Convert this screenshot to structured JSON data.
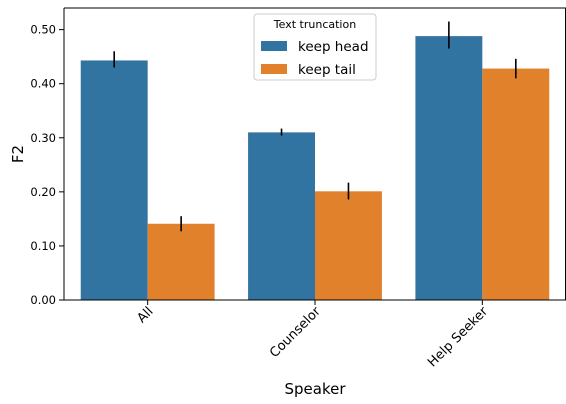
{
  "chart_data": {
    "type": "bar",
    "title": "",
    "xlabel": "Speaker",
    "ylabel": "F2",
    "categories": [
      "All",
      "Counselor",
      "Help Seeker"
    ],
    "ylim": [
      0,
      0.54
    ],
    "yticks": [
      0.0,
      0.1,
      0.2,
      0.3,
      0.4,
      0.5
    ],
    "ytick_labels": [
      "0.00",
      "0.10",
      "0.20",
      "0.30",
      "0.40",
      "0.50"
    ],
    "grid": false,
    "legend": {
      "title": "Text truncation",
      "placement": "top-center"
    },
    "series": [
      {
        "name": "keep head",
        "color": "#3274a1",
        "values": [
          0.443,
          0.31,
          0.488
        ],
        "error": [
          [
            0.43,
            0.46
          ],
          [
            0.304,
            0.317
          ],
          [
            0.465,
            0.515
          ]
        ]
      },
      {
        "name": "keep tail",
        "color": "#e1812c",
        "values": [
          0.141,
          0.201,
          0.428
        ],
        "error": [
          [
            0.127,
            0.155
          ],
          [
            0.186,
            0.217
          ],
          [
            0.41,
            0.446
          ]
        ]
      }
    ]
  }
}
